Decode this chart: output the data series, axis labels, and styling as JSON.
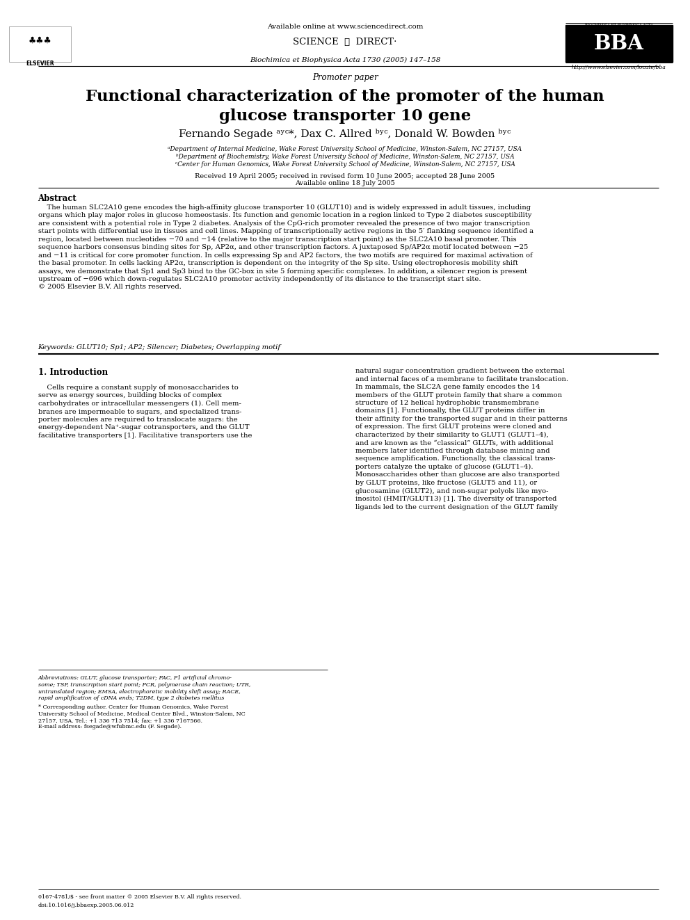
{
  "title": "Functional characterization of the promoter of the human\nglucose transporter 10 gene",
  "subtitle": "Promoter paper",
  "journal": "Biochimica et Biophysica Acta 1730 (2005) 147–158",
  "available_online": "Available online at www.sciencedirect.com",
  "url": "http://www.elsevier.com/locate/bba",
  "affil_a": "ᵃDepartment of Internal Medicine, Wake Forest University School of Medicine, Winston-Salem, NC 27157, USA",
  "affil_b": "ᵇDepartment of Biochemistry, Wake Forest University School of Medicine, Winston-Salem, NC 27157, USA",
  "affil_c": "ᶜCenter for Human Genomics, Wake Forest University School of Medicine, Winston-Salem, NC 27157, USA",
  "received": "Received 19 April 2005; received in revised form 10 June 2005; accepted 28 June 2005",
  "available": "Available online 18 July 2005",
  "abstract_title": "Abstract",
  "abstract_text": "    The human SLC2A10 gene encodes the high-affinity glucose transporter 10 (GLUT10) and is widely expressed in adult tissues, including\norgans which play major roles in glucose homeostasis. Its function and genomic location in a region linked to Type 2 diabetes susceptibility\nare consistent with a potential role in Type 2 diabetes. Analysis of the CpG-rich promoter revealed the presence of two major transcription\nstart points with differential use in tissues and cell lines. Mapping of transcriptionally active regions in the 5′ flanking sequence identified a\nregion, located between nucleotides −70 and −14 (relative to the major transcription start point) as the SLC2A10 basal promoter. This\nsequence harbors consensus binding sites for Sp, AP2α, and other transcription factors. A juxtaposed Sp/AP2α motif located between −25\nand −11 is critical for core promoter function. In cells expressing Sp and AP2 factors, the two motifs are required for maximal activation of\nthe basal promoter. In cells lacking AP2α, transcription is dependent on the integrity of the Sp site. Using electrophoresis mobility shift\nassays, we demonstrate that Sp1 and Sp3 bind to the GC-box in site 5 forming specific complexes. In addition, a silencer region is present\nupstream of −696 which down-regulates SLC2A10 promoter activity independently of its distance to the transcript start site.\n© 2005 Elsevier B.V. All rights reserved.",
  "keywords": "Keywords: GLUT10; Sp1; AP2; Silencer; Diabetes; Overlapping motif",
  "intro_title": "1. Introduction",
  "intro_left": "    Cells require a constant supply of monosaccharides to\nserve as energy sources, building blocks of complex\ncarbohydrates or intracellular messengers (1). Cell mem-\nbranes are impermeable to sugars, and specialized trans-\nporter molecules are required to translocate sugars: the\nenergy-dependent Na⁺-sugar cotransporters, and the GLUT\nfacilitative transporters [1]. Facilitative transporters use the",
  "intro_right": "natural sugar concentration gradient between the external\nand internal faces of a membrane to facilitate translocation.\nIn mammals, the SLC2A gene family encodes the 14\nmembers of the GLUT protein family that share a common\nstructure of 12 helical hydrophobic transmembrane\ndomains [1]. Functionally, the GLUT proteins differ in\ntheir affinity for the transported sugar and in their patterns\nof expression. The first GLUT proteins were cloned and\ncharacterized by their similarity to GLUT1 (GLUT1–4),\nand are known as the “classical” GLUTs, with additional\nmembers later identified through database mining and\nsequence amplification. Functionally, the classical trans-\nporters catalyze the uptake of glucose (GLUT1–4).\nMonosaccharides other than glucose are also transported\nby GLUT proteins, like fructose (GLUT5 and 11), or\nglucosamine (GLUT2), and non-sugar polyols like myo-\ninositol (HMIT/GLUT13) [1]. The diversity of transported\nligands led to the current designation of the GLUT family",
  "footnote_abbrev": "Abbreviations: GLUT, glucose transporter; PAC, P1 artificial chromo-\nsome; TSP, transcription start point; PCR, polymerase chain reaction; UTR,\nuntranslated region; EMSA, electrophoretic mobility shift assay; RACE,\nrapid amplification of cDNA ends; T2DM, type 2 diabetes mellitus",
  "footnote_star": "* Corresponding author. Center for Human Genomics, Wake Forest\nUniversity School of Medicine, Medical Center Blvd., Winston-Salem, NC\n27157, USA. Tel.: +1 336 713 7514; fax: +1 336 7167566.",
  "footnote_email": "E-mail address: fsegade@wfubmc.edu (F. Segade).",
  "issn": "0167-4781/$ - see front matter © 2005 Elsevier B.V. All rights reserved.",
  "doi": "doi:10.1016/j.bbaexp.2005.06.012",
  "bg_color": "#ffffff",
  "text_color": "#000000",
  "lm": 0.055,
  "rm": 0.955
}
